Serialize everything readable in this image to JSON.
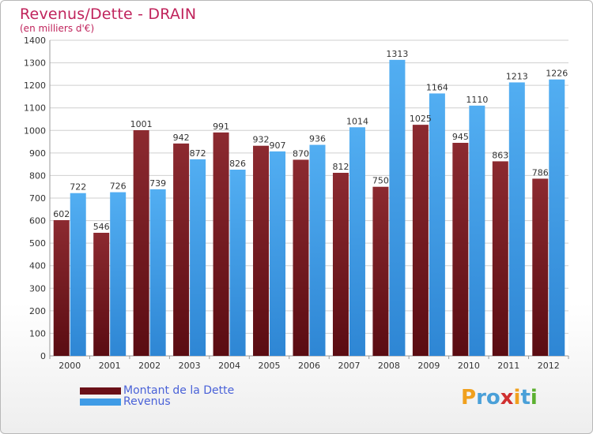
{
  "chart_data": {
    "type": "bar",
    "title": "Revenus/Dette - DRAIN",
    "subtitle": "(en milliers d'€)",
    "categories": [
      "2000",
      "2001",
      "2002",
      "2003",
      "2004",
      "2005",
      "2006",
      "2007",
      "2008",
      "2009",
      "2010",
      "2011",
      "2012"
    ],
    "series": [
      {
        "name": "Montant de la Dette",
        "color": "#7a1e24",
        "values": [
          602,
          546,
          1001,
          942,
          991,
          932,
          870,
          812,
          750,
          1025,
          945,
          863,
          786
        ],
        "labels": [
          "602",
          "546",
          "1001",
          "942",
          "991",
          "932",
          "870",
          "812",
          "750",
          "1025",
          "945",
          "863",
          "786"
        ]
      },
      {
        "name": "Revenus",
        "color": "#3f9be6",
        "values": [
          722,
          726,
          739,
          872,
          826,
          907,
          936,
          1014,
          1313,
          1164,
          1110,
          1213,
          1226
        ],
        "labels": [
          "722",
          "726",
          "739",
          "872",
          "826",
          "907",
          "936",
          "1014",
          "1313",
          "1164",
          "1110",
          "1213",
          "1226"
        ]
      }
    ],
    "ylim": [
      0,
      1400
    ],
    "yticks": [
      0,
      100,
      200,
      300,
      400,
      500,
      600,
      700,
      800,
      900,
      1000,
      1100,
      1200,
      1300,
      1400
    ],
    "grid": true,
    "legend": "bottom-left"
  },
  "legend": {
    "debt": "Montant de la Dette",
    "revenue": "Revenus"
  },
  "logo": {
    "text": "Proxiti",
    "letters": [
      "P",
      "r",
      "o",
      "x",
      "i",
      "t",
      "i"
    ],
    "colors": [
      "#f0a01e",
      "#4aa0d8",
      "#4aa0d8",
      "#d03030",
      "#f0a01e",
      "#4aa0d8",
      "#5cb030"
    ]
  }
}
